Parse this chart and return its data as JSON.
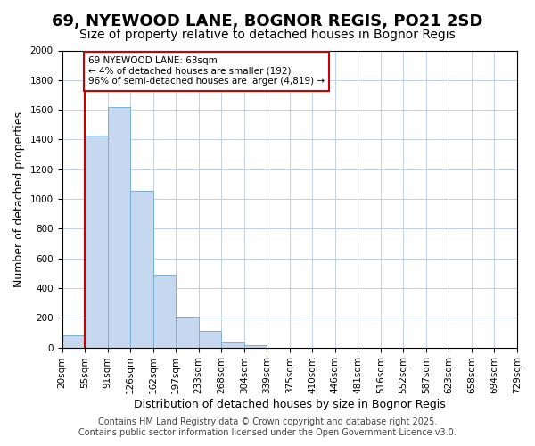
{
  "title": "69, NYEWOOD LANE, BOGNOR REGIS, PO21 2SD",
  "subtitle": "Size of property relative to detached houses in Bognor Regis",
  "xlabel": "Distribution of detached houses by size in Bognor Regis",
  "ylabel": "Number of detached properties",
  "bin_labels": [
    "20sqm",
    "55sqm",
    "91sqm",
    "126sqm",
    "162sqm",
    "197sqm",
    "233sqm",
    "268sqm",
    "304sqm",
    "339sqm",
    "375sqm",
    "410sqm",
    "446sqm",
    "481sqm",
    "516sqm",
    "552sqm",
    "587sqm",
    "623sqm",
    "658sqm",
    "694sqm",
    "729sqm"
  ],
  "bar_values": [
    80,
    1425,
    1620,
    1055,
    490,
    205,
    110,
    40,
    15,
    0,
    0,
    0,
    0,
    0,
    0,
    0,
    0,
    0,
    0,
    0
  ],
  "bar_color": "#c5d8f0",
  "bar_edge_color": "#7bafd4",
  "property_line_x": 1,
  "annotation_title": "69 NYEWOOD LANE: 63sqm",
  "annotation_line1": "← 4% of detached houses are smaller (192)",
  "annotation_line2": "96% of semi-detached houses are larger (4,819) →",
  "annotation_box_color": "#ffffff",
  "annotation_box_edge": "#cc0000",
  "vline_color": "#cc0000",
  "ylim": [
    0,
    2000
  ],
  "yticks": [
    0,
    200,
    400,
    600,
    800,
    1000,
    1200,
    1400,
    1600,
    1800,
    2000
  ],
  "footer1": "Contains HM Land Registry data © Crown copyright and database right 2025.",
  "footer2": "Contains public sector information licensed under the Open Government Licence v3.0.",
  "title_fontsize": 13,
  "subtitle_fontsize": 10,
  "axis_label_fontsize": 9,
  "tick_fontsize": 7.5,
  "footer_fontsize": 7
}
